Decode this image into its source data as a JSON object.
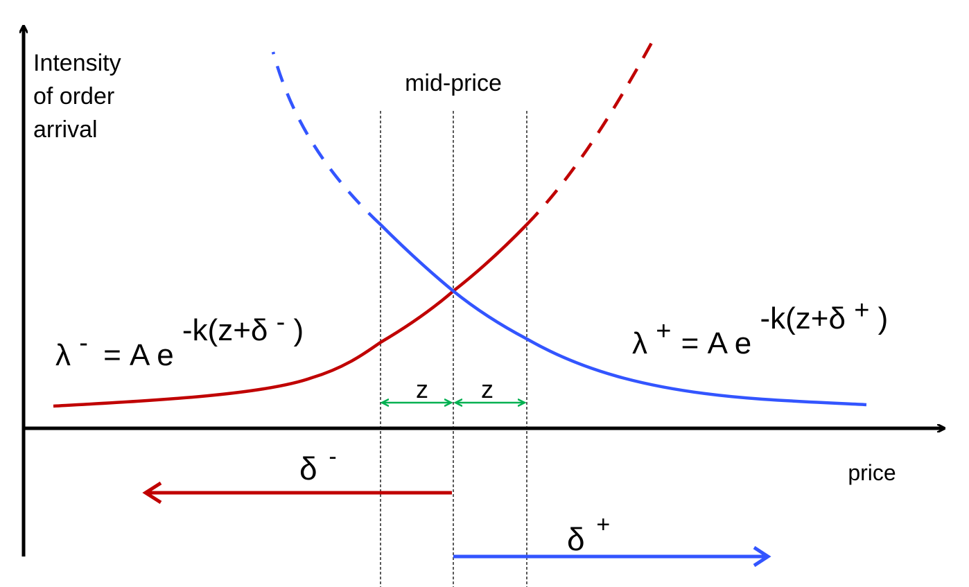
{
  "diagram": {
    "y_axis_label_lines": [
      "Intensity",
      "of order",
      "arrival"
    ],
    "x_axis_label": "price",
    "mid_price_label": "mid-price",
    "z_left_label": "z",
    "z_right_label": "z",
    "formula_minus": {
      "base": "λ",
      "base_sup": "-",
      "rhs": "=  A e",
      "exp": "-k(z+δ",
      "exp_sup": "-",
      "exp_close": ")"
    },
    "formula_plus": {
      "base": "λ",
      "base_sup": "+",
      "rhs": "=  A e",
      "exp": "-k(z+δ",
      "exp_sup": "+",
      "exp_close": ")"
    },
    "delta_minus": {
      "symbol": "δ",
      "sup": "-"
    },
    "delta_plus": {
      "symbol": "δ",
      "sup": "+"
    },
    "colors": {
      "axis": "#000000",
      "bid_curve": "#c00000",
      "ask_curve": "#3355ff",
      "z_arrow": "#00b050",
      "guide_line": "#000000"
    }
  }
}
